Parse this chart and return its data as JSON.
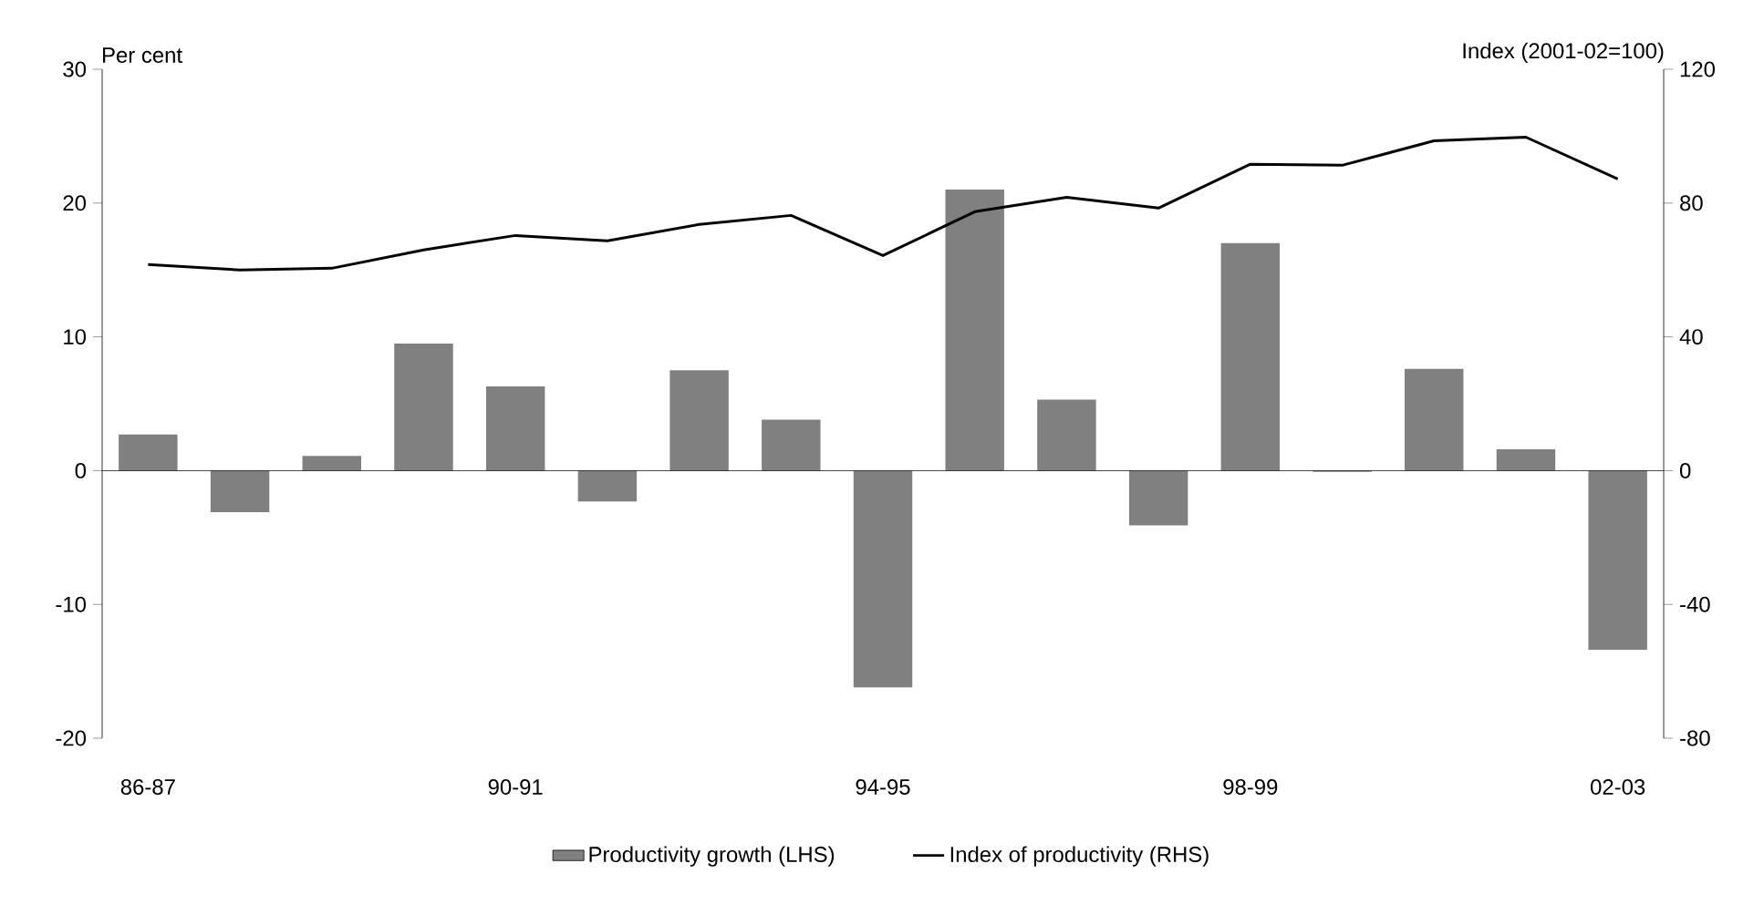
{
  "chart_data": {
    "type": "bar",
    "categories": [
      "86-87",
      null,
      null,
      null,
      "90-91",
      null,
      null,
      null,
      "94-95",
      null,
      null,
      null,
      "98-99",
      null,
      null,
      null,
      "02-03"
    ],
    "ylabel": "Per cent",
    "y2label": "Index (2001-02=100)",
    "series": [
      {
        "name": "Productivity growth (LHS)",
        "color": "#808080",
        "values": [
          2.7,
          -3.1,
          1.1,
          9.5,
          6.3,
          -2.3,
          7.5,
          3.8,
          -16.2,
          21.0,
          5.3,
          -4.1,
          17.0,
          -0.1,
          7.6,
          1.6,
          -13.4
        ]
      },
      {
        "name": "Index of productivity (RHS)",
        "type": "line",
        "axis": "y2",
        "color": "#000000",
        "values": [
          61.6,
          60.0,
          60.5,
          66.0,
          70.3,
          68.7,
          73.6,
          76.3,
          64.3,
          77.4,
          81.7,
          78.5,
          91.6,
          91.3,
          98.6,
          99.7,
          87.2
        ]
      }
    ],
    "ylim": [
      -20,
      30
    ],
    "yticks": [
      -20,
      -10,
      0,
      10,
      20,
      30
    ],
    "y2lim": [
      -80,
      120
    ],
    "y2ticks": [
      -80,
      -40,
      0,
      40,
      80,
      120
    ],
    "legend": "bottom",
    "marker": "none",
    "line_style": "solid"
  }
}
